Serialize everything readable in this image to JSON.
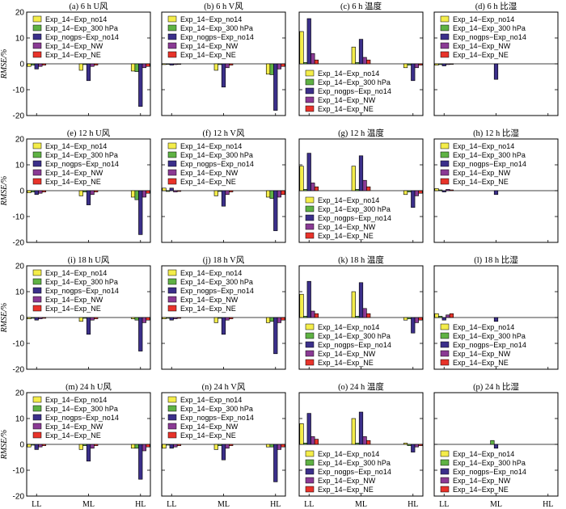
{
  "colors": {
    "Exp_14-Exp_no14": "#f4ed4a",
    "Exp_14-Exp_300 hPa": "#5fb244",
    "Exp_nogps-Exp_no14": "#3b2f8a",
    "Exp_14-Exp_NW": "#8a3a94",
    "Exp_14-Exp_NE": "#e8332a"
  },
  "row_ylabel": "RMSE/%",
  "chart_data": [
    {
      "type": "bar",
      "title": "(a) 6 h U风",
      "categories": [
        "LL",
        "ML",
        "HL"
      ],
      "ylim": [
        -20,
        20
      ],
      "yticks": [
        -20,
        -10,
        0,
        10,
        20
      ],
      "legend_position": "top",
      "series": [
        {
          "name": "Exp_14−Exp_no14",
          "values": [
            -1.0,
            -2.5,
            -2.8
          ]
        },
        {
          "name": "Exp_14−Exp_300 hPa",
          "values": [
            -0.5,
            -0.3,
            -3.0
          ]
        },
        {
          "name": "Exp_nogps−Exp_no14",
          "values": [
            -2.0,
            -6.5,
            -16.5
          ]
        },
        {
          "name": "Exp_14−Exp_NW",
          "values": [
            -1.0,
            -1.0,
            -1.5
          ]
        },
        {
          "name": "Exp_14−Exp_NE",
          "values": [
            -0.5,
            -0.5,
            -1.0
          ]
        }
      ]
    },
    {
      "type": "bar",
      "title": "(b) 6 h V风",
      "categories": [
        "LL",
        "ML",
        "HL"
      ],
      "ylim": [
        -20,
        20
      ],
      "yticks": [
        -20,
        -10,
        0,
        10,
        20
      ],
      "legend_position": "top",
      "series": [
        {
          "name": "Exp_14−Exp_no14",
          "values": [
            -0.3,
            -2.5,
            -4.0
          ]
        },
        {
          "name": "Exp_14−Exp_300 hPa",
          "values": [
            -0.2,
            -0.3,
            -4.2
          ]
        },
        {
          "name": "Exp_nogps−Exp_no14",
          "values": [
            -0.5,
            -9.0,
            -18.0
          ]
        },
        {
          "name": "Exp_14−Exp_NW",
          "values": [
            -0.3,
            -1.5,
            -2.0
          ]
        },
        {
          "name": "Exp_14−Exp_NE",
          "values": [
            -0.2,
            -0.5,
            -1.0
          ]
        }
      ]
    },
    {
      "type": "bar",
      "title": "(c) 6 h 温度",
      "categories": [
        "LL",
        "ML",
        "HL"
      ],
      "ylim": [
        -20,
        20
      ],
      "yticks": [
        -20,
        -10,
        0,
        10,
        20
      ],
      "legend_position": "bottom",
      "series": [
        {
          "name": "Exp_14−Exp_no14",
          "values": [
            12.5,
            6.5,
            -1.5
          ]
        },
        {
          "name": "Exp_14−Exp_300 hPa",
          "values": [
            0.5,
            0.5,
            -0.5
          ]
        },
        {
          "name": "Exp_nogps−Exp_no14",
          "values": [
            17.5,
            9.5,
            -6.5
          ]
        },
        {
          "name": "Exp_14−Exp_NW",
          "values": [
            4.0,
            2.5,
            -1.5
          ]
        },
        {
          "name": "Exp_14−Exp_NE",
          "values": [
            1.5,
            1.5,
            -0.5
          ]
        }
      ]
    },
    {
      "type": "bar",
      "title": "(d) 6 h 比湿",
      "categories": [
        "LL",
        "ML",
        "HL"
      ],
      "ylim": [
        -20,
        20
      ],
      "yticks": [
        -20,
        -10,
        0,
        10,
        20
      ],
      "legend_position": "top",
      "series": [
        {
          "name": "Exp_14−Exp_no14",
          "values": [
            -0.5,
            0,
            0
          ]
        },
        {
          "name": "Exp_14−Exp_300 hPa",
          "values": [
            -0.3,
            0,
            0
          ]
        },
        {
          "name": "Exp_nogps−Exp_no14",
          "values": [
            -0.8,
            -6.0,
            0
          ]
        },
        {
          "name": "Exp_14−Exp_NW",
          "values": [
            -0.3,
            0,
            0
          ]
        },
        {
          "name": "Exp_14−Exp_NE",
          "values": [
            -0.2,
            0,
            0
          ]
        }
      ]
    },
    {
      "type": "bar",
      "title": "(e) 12 h U风",
      "categories": [
        "LL",
        "ML",
        "HL"
      ],
      "ylim": [
        -20,
        20
      ],
      "yticks": [
        -20,
        -10,
        0,
        10,
        20
      ],
      "legend_position": "top",
      "series": [
        {
          "name": "Exp_14−Exp_no14",
          "values": [
            -0.8,
            -2.0,
            -2.5
          ]
        },
        {
          "name": "Exp_14−Exp_300 hPa",
          "values": [
            -0.5,
            -0.5,
            -3.5
          ]
        },
        {
          "name": "Exp_nogps−Exp_no14",
          "values": [
            -1.5,
            -5.5,
            -17.0
          ]
        },
        {
          "name": "Exp_14−Exp_NW",
          "values": [
            -1.0,
            -1.5,
            -2.5
          ]
        },
        {
          "name": "Exp_14−Exp_NE",
          "values": [
            -0.5,
            -0.5,
            -1.0
          ]
        }
      ]
    },
    {
      "type": "bar",
      "title": "(f) 12 h V风",
      "categories": [
        "LL",
        "ML",
        "HL"
      ],
      "ylim": [
        -20,
        20
      ],
      "yticks": [
        -20,
        -10,
        0,
        10,
        20
      ],
      "legend_position": "top",
      "series": [
        {
          "name": "Exp_14−Exp_no14",
          "values": [
            1.0,
            -2.0,
            -2.5
          ]
        },
        {
          "name": "Exp_14−Exp_300 hPa",
          "values": [
            -0.3,
            -0.3,
            -3.0
          ]
        },
        {
          "name": "Exp_nogps−Exp_no14",
          "values": [
            1.0,
            -6.0,
            -15.5
          ]
        },
        {
          "name": "Exp_14−Exp_NW",
          "values": [
            -0.5,
            -1.5,
            -2.5
          ]
        },
        {
          "name": "Exp_14−Exp_NE",
          "values": [
            -0.3,
            -0.5,
            -1.5
          ]
        }
      ]
    },
    {
      "type": "bar",
      "title": "(g) 12 h 温度",
      "categories": [
        "LL",
        "ML",
        "HL"
      ],
      "ylim": [
        -20,
        20
      ],
      "yticks": [
        -20,
        -10,
        0,
        10,
        20
      ],
      "legend_position": "bottom",
      "series": [
        {
          "name": "Exp_14−Exp_no14",
          "values": [
            9.5,
            9.5,
            -1.5
          ]
        },
        {
          "name": "Exp_14−Exp_300 hPa",
          "values": [
            0.5,
            0.5,
            -0.5
          ]
        },
        {
          "name": "Exp_nogps−Exp_no14",
          "values": [
            14.5,
            13.5,
            -6.5
          ]
        },
        {
          "name": "Exp_14−Exp_NW",
          "values": [
            3.0,
            4.0,
            -2.0
          ]
        },
        {
          "name": "Exp_14−Exp_NE",
          "values": [
            1.5,
            1.5,
            -1.0
          ]
        }
      ]
    },
    {
      "type": "bar",
      "title": "(h) 12 h 比湿",
      "categories": [
        "LL",
        "ML",
        "HL"
      ],
      "ylim": [
        -20,
        20
      ],
      "yticks": [
        -20,
        -10,
        0,
        10,
        20
      ],
      "legend_position": "top",
      "series": [
        {
          "name": "Exp_14−Exp_no14",
          "values": [
            0.8,
            0,
            0
          ]
        },
        {
          "name": "Exp_14−Exp_300 hPa",
          "values": [
            0.3,
            0,
            0
          ]
        },
        {
          "name": "Exp_nogps−Exp_no14",
          "values": [
            -0.5,
            -1.5,
            0
          ]
        },
        {
          "name": "Exp_14−Exp_NW",
          "values": [
            0.5,
            0,
            0
          ]
        },
        {
          "name": "Exp_14−Exp_NE",
          "values": [
            0.3,
            0,
            0
          ]
        }
      ]
    },
    {
      "type": "bar",
      "title": "(i) 18 h U风",
      "categories": [
        "LL",
        "ML",
        "HL"
      ],
      "ylim": [
        -20,
        20
      ],
      "yticks": [
        -20,
        -10,
        0,
        10,
        20
      ],
      "legend_position": "top",
      "series": [
        {
          "name": "Exp_14−Exp_no14",
          "values": [
            -0.5,
            -1.5,
            -0.5
          ]
        },
        {
          "name": "Exp_14−Exp_300 hPa",
          "values": [
            -0.3,
            -0.3,
            -1.0
          ]
        },
        {
          "name": "Exp_nogps−Exp_no14",
          "values": [
            -1.0,
            -6.5,
            -13.0
          ]
        },
        {
          "name": "Exp_14−Exp_NW",
          "values": [
            -0.5,
            -1.0,
            -2.0
          ]
        },
        {
          "name": "Exp_14−Exp_NE",
          "values": [
            -0.3,
            -0.5,
            -1.0
          ]
        }
      ]
    },
    {
      "type": "bar",
      "title": "(j) 18 h V风",
      "categories": [
        "LL",
        "ML",
        "HL"
      ],
      "ylim": [
        -20,
        20
      ],
      "yticks": [
        -20,
        -10,
        0,
        10,
        20
      ],
      "legend_position": "top",
      "series": [
        {
          "name": "Exp_14−Exp_no14",
          "values": [
            -0.5,
            -2.0,
            -2.0
          ]
        },
        {
          "name": "Exp_14−Exp_300 hPa",
          "values": [
            -0.3,
            -0.3,
            -1.5
          ]
        },
        {
          "name": "Exp_nogps−Exp_no14",
          "values": [
            -1.0,
            -6.5,
            -14.0
          ]
        },
        {
          "name": "Exp_14−Exp_NW",
          "values": [
            -0.5,
            -1.0,
            -2.0
          ]
        },
        {
          "name": "Exp_14−Exp_NE",
          "values": [
            -0.3,
            -0.5,
            -1.0
          ]
        }
      ]
    },
    {
      "type": "bar",
      "title": "(k) 18 h 温度",
      "categories": [
        "LL",
        "ML",
        "HL"
      ],
      "ylim": [
        -20,
        20
      ],
      "yticks": [
        -20,
        -10,
        0,
        10,
        20
      ],
      "legend_position": "bottom",
      "series": [
        {
          "name": "Exp_14−Exp_no14",
          "values": [
            9.0,
            10.0,
            -1.0
          ]
        },
        {
          "name": "Exp_14−Exp_300 hPa",
          "values": [
            0.5,
            0.5,
            -0.5
          ]
        },
        {
          "name": "Exp_nogps−Exp_no14",
          "values": [
            14.0,
            13.5,
            -6.0
          ]
        },
        {
          "name": "Exp_14−Exp_NW",
          "values": [
            2.5,
            3.5,
            -2.0
          ]
        },
        {
          "name": "Exp_14−Exp_NE",
          "values": [
            1.5,
            1.5,
            -1.0
          ]
        }
      ]
    },
    {
      "type": "bar",
      "title": "(l) 18 h 比湿",
      "categories": [
        "LL",
        "ML",
        "HL"
      ],
      "ylim": [
        -20,
        20
      ],
      "yticks": [
        -20,
        -10,
        0,
        10,
        20
      ],
      "legend_position": "bottom",
      "series": [
        {
          "name": "Exp_14−Exp_no14",
          "values": [
            1.5,
            0,
            0
          ]
        },
        {
          "name": "Exp_14−Exp_300 hPa",
          "values": [
            0.5,
            0,
            0
          ]
        },
        {
          "name": "Exp_nogps−Exp_no14",
          "values": [
            -1.0,
            -1.5,
            0
          ]
        },
        {
          "name": "Exp_14−Exp_NW",
          "values": [
            1.0,
            0,
            0
          ]
        },
        {
          "name": "Exp_14−Exp_NE",
          "values": [
            1.5,
            0,
            0
          ]
        }
      ]
    },
    {
      "type": "bar",
      "title": "(m) 24 h U风",
      "categories": [
        "LL",
        "ML",
        "HL"
      ],
      "ylim": [
        -20,
        20
      ],
      "yticks": [
        -20,
        -10,
        0,
        10,
        20
      ],
      "legend_position": "top",
      "series": [
        {
          "name": "Exp_14−Exp_no14",
          "values": [
            -1.0,
            -2.0,
            -1.5
          ]
        },
        {
          "name": "Exp_14−Exp_300 hPa",
          "values": [
            -0.3,
            -0.5,
            -1.5
          ]
        },
        {
          "name": "Exp_nogps−Exp_no14",
          "values": [
            -2.0,
            -6.5,
            -13.5
          ]
        },
        {
          "name": "Exp_14−Exp_NW",
          "values": [
            -1.0,
            -1.5,
            -2.5
          ]
        },
        {
          "name": "Exp_14−Exp_NE",
          "values": [
            -0.5,
            -0.5,
            -1.0
          ]
        }
      ]
    },
    {
      "type": "bar",
      "title": "(n) 24 h V风",
      "categories": [
        "LL",
        "ML",
        "HL"
      ],
      "ylim": [
        -20,
        20
      ],
      "yticks": [
        -20,
        -10,
        0,
        10,
        20
      ],
      "legend_position": "top",
      "series": [
        {
          "name": "Exp_14−Exp_no14",
          "values": [
            -1.5,
            -2.0,
            -1.0
          ]
        },
        {
          "name": "Exp_14−Exp_300 hPa",
          "values": [
            -0.3,
            -0.5,
            -1.0
          ]
        },
        {
          "name": "Exp_nogps−Exp_no14",
          "values": [
            -1.5,
            -6.0,
            -14.5
          ]
        },
        {
          "name": "Exp_14−Exp_NW",
          "values": [
            -1.0,
            -1.5,
            -2.0
          ]
        },
        {
          "name": "Exp_14−Exp_NE",
          "values": [
            -0.5,
            -0.5,
            -1.0
          ]
        }
      ]
    },
    {
      "type": "bar",
      "title": "(o) 24 h 温度",
      "categories": [
        "LL",
        "ML",
        "HL"
      ],
      "ylim": [
        -20,
        20
      ],
      "yticks": [
        -20,
        -10,
        0,
        10,
        20
      ],
      "legend_position": "bottom",
      "series": [
        {
          "name": "Exp_14−Exp_no14",
          "values": [
            8.0,
            10.0,
            0.5
          ]
        },
        {
          "name": "Exp_14−Exp_300 hPa",
          "values": [
            0.5,
            0.5,
            -0.5
          ]
        },
        {
          "name": "Exp_nogps−Exp_no14",
          "values": [
            12.0,
            12.5,
            -3.0
          ]
        },
        {
          "name": "Exp_14−Exp_NW",
          "values": [
            3.0,
            3.0,
            -1.0
          ]
        },
        {
          "name": "Exp_14−Exp_NE",
          "values": [
            2.0,
            1.5,
            -0.5
          ]
        }
      ]
    },
    {
      "type": "bar",
      "title": "(p) 24 h 比湿",
      "categories": [
        "LL",
        "ML",
        "HL"
      ],
      "ylim": [
        -20,
        20
      ],
      "yticks": [
        -20,
        -10,
        0,
        10,
        20
      ],
      "legend_position": "bottom",
      "series": [
        {
          "name": "Exp_14−Exp_no14",
          "values": [
            0,
            0,
            0
          ]
        },
        {
          "name": "Exp_14−Exp_300 hPa",
          "values": [
            0,
            1.5,
            0
          ]
        },
        {
          "name": "Exp_nogps−Exp_no14",
          "values": [
            0,
            -1.5,
            0
          ]
        },
        {
          "name": "Exp_14−Exp_NW",
          "values": [
            0,
            0,
            0
          ]
        },
        {
          "name": "Exp_14−Exp_NE",
          "values": [
            0,
            0,
            0
          ]
        }
      ]
    }
  ]
}
